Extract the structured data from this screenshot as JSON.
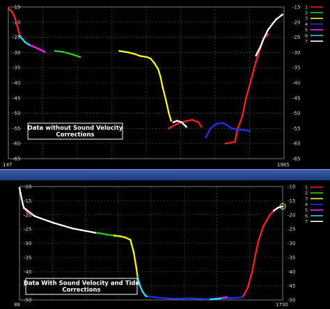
{
  "chart_data": [
    {
      "type": "scatter",
      "annotation": [
        "Data without Sound Velocity",
        "Corrections"
      ],
      "x_tick_labels": [
        "147",
        "1965"
      ],
      "y_tick_labels": [
        "-15",
        "-20",
        "-25",
        "-30",
        "-35",
        "-40",
        "-45",
        "-50",
        "-55",
        "-60",
        "-65"
      ],
      "xlim": [
        147,
        1965
      ],
      "ylim": [
        -65,
        -15
      ],
      "grid": true,
      "legend_labels": [
        "1",
        "2",
        "3",
        "4",
        "5",
        "6",
        "7"
      ],
      "colors": [
        "#ff2020",
        "#20d020",
        "#ffff00",
        "#2030ff",
        "#ff20ff",
        "#20e0ff",
        "#ffffff"
      ],
      "series": [
        {
          "label": "1",
          "segments": [
            {
              "x": [
                147,
                170,
                190,
                205,
                215,
                222
              ],
              "y": [
                -15.5,
                -16.5,
                -18.5,
                -21,
                -23,
                -24.5
              ]
            },
            {
              "x": [
                1205,
                1260,
                1320,
                1360,
                1400,
                1420
              ],
              "y": [
                -55,
                -53.5,
                -52.6,
                -52.2,
                -53,
                -54.5
              ]
            },
            {
              "x": [
                1580,
                1640,
                1660,
                1690,
                1715,
                1745,
                1780,
                1830,
                1860
              ],
              "y": [
                -60,
                -59.5,
                -55,
                -51,
                -45,
                -39.5,
                -33,
                -25.5,
                -24
              ]
            }
          ]
        },
        {
          "label": "2",
          "segments": [
            {
              "x": [
                455,
                505,
                545,
                580,
                620
              ],
              "y": [
                -29.5,
                -29.8,
                -30.3,
                -30.8,
                -31.5
              ]
            }
          ]
        },
        {
          "label": "3",
          "segments": [
            {
              "x": [
                880,
                940,
                980,
                1020,
                1060,
                1085,
                1110,
                1135,
                1150,
                1165,
                1185,
                1205,
                1220
              ],
              "y": [
                -29.5,
                -30,
                -30.5,
                -31.2,
                -31.5,
                -32,
                -33.5,
                -35.5,
                -38,
                -41.5,
                -45.5,
                -50,
                -52.5
              ]
            }
          ]
        },
        {
          "label": "4",
          "segments": [
            {
              "x": [
                1450,
                1480,
                1520,
                1560,
                1590,
                1620,
                1660,
                1700,
                1740
              ],
              "y": [
                -58,
                -55,
                -53.5,
                -53.2,
                -54,
                -55,
                -55.5,
                -55.5,
                -56
              ]
            }
          ]
        },
        {
          "label": "5",
          "segments": [
            {
              "x": [
                285,
                320,
                345,
                365,
                385
              ],
              "y": [
                -27.5,
                -28.2,
                -28.8,
                -29.3,
                -29.8
              ]
            }
          ]
        },
        {
          "label": "6",
          "segments": [
            {
              "x": [
                222,
                240,
                255,
                270,
                285
              ],
              "y": [
                -24.5,
                -25.6,
                -26.5,
                -27,
                -27.5
              ]
            }
          ]
        },
        {
          "label": "7",
          "segments": [
            {
              "x": [
                1235,
                1260,
                1290,
                1320
              ],
              "y": [
                -53,
                -52.5,
                -53,
                -54.5
              ]
            },
            {
              "x": [
                1780,
                1810,
                1830,
                1860,
                1890,
                1915,
                1955
              ],
              "y": [
                -31,
                -28,
                -25.5,
                -22.5,
                -20.5,
                -19,
                -17.5
              ]
            }
          ]
        }
      ]
    },
    {
      "type": "scatter",
      "annotation": [
        "Data With Sound Velocity and Tide",
        "Corrections"
      ],
      "x_tick_labels": [
        "88",
        "1730"
      ],
      "y_tick_labels": [
        "-10",
        "-15",
        "-20",
        "-25",
        "-30",
        "-35",
        "-40",
        "-45",
        "-50"
      ],
      "xlim": [
        88,
        1730
      ],
      "ylim": [
        -50,
        -10
      ],
      "grid": true,
      "legend_labels": [
        "1",
        "2",
        "3",
        "4",
        "5",
        "6",
        "7"
      ],
      "colors": [
        "#ff2020",
        "#20d020",
        "#ffff00",
        "#2030ff",
        "#ff20ff",
        "#20e0ff",
        "#ffffff"
      ],
      "series": [
        {
          "label": "1",
          "segments": [
            {
              "x": [
                115,
                135,
                160,
                185
              ],
              "y": [
                -17.5,
                -19,
                -19.8,
                -20.5
              ]
            },
            {
              "x": [
                1480,
                1510,
                1540,
                1560,
                1580,
                1610,
                1650,
                1675
              ],
              "y": [
                -49,
                -46,
                -40,
                -34,
                -29,
                -24,
                -20,
                -18.5
              ]
            }
          ]
        },
        {
          "label": "2",
          "segments": [
            {
              "x": [
                560,
                600,
                640,
                680
              ],
              "y": [
                -26.3,
                -26.6,
                -27,
                -27.3
              ]
            }
          ]
        },
        {
          "label": "3",
          "segments": [
            {
              "x": [
                680,
                720,
                750,
                780,
                800,
                815,
                825
              ],
              "y": [
                -27.3,
                -27.6,
                -28,
                -28.8,
                -33,
                -38,
                -42
              ]
            }
          ]
        },
        {
          "label": "4",
          "segments": [
            {
              "x": [
                880,
                950,
                1050,
                1150,
                1250,
                1350,
                1450,
                1480
              ],
              "y": [
                -48.7,
                -49.2,
                -49.6,
                -49.4,
                -49.7,
                -49.5,
                -49.2,
                -49
              ]
            }
          ]
        },
        {
          "label": "5",
          "segments": [
            {
              "x": [
                1320,
                1350,
                1380
              ],
              "y": [
                -49.6,
                -49.3,
                -49
              ]
            }
          ]
        },
        {
          "label": "6",
          "segments": [
            {
              "x": [
                825,
                840,
                855,
                870,
                880
              ],
              "y": [
                -42,
                -45,
                -47,
                -48.2,
                -48.7
              ]
            },
            {
              "x": [
                1280,
                1310,
                1340
              ],
              "y": [
                -49.8,
                -49.6,
                -49.5
              ]
            }
          ]
        },
        {
          "label": "7",
          "segments": [
            {
              "x": [
                88,
                95,
                100,
                108,
                115,
                185,
                300,
                420,
                560
              ],
              "y": [
                -10.5,
                -12.5,
                -14,
                -16,
                -17.5,
                -20.5,
                -22.8,
                -24.8,
                -26.3
              ]
            },
            {
              "x": [
                1675,
                1700,
                1730
              ],
              "y": [
                -18.5,
                -17.5,
                -17
              ]
            }
          ]
        }
      ]
    }
  ]
}
